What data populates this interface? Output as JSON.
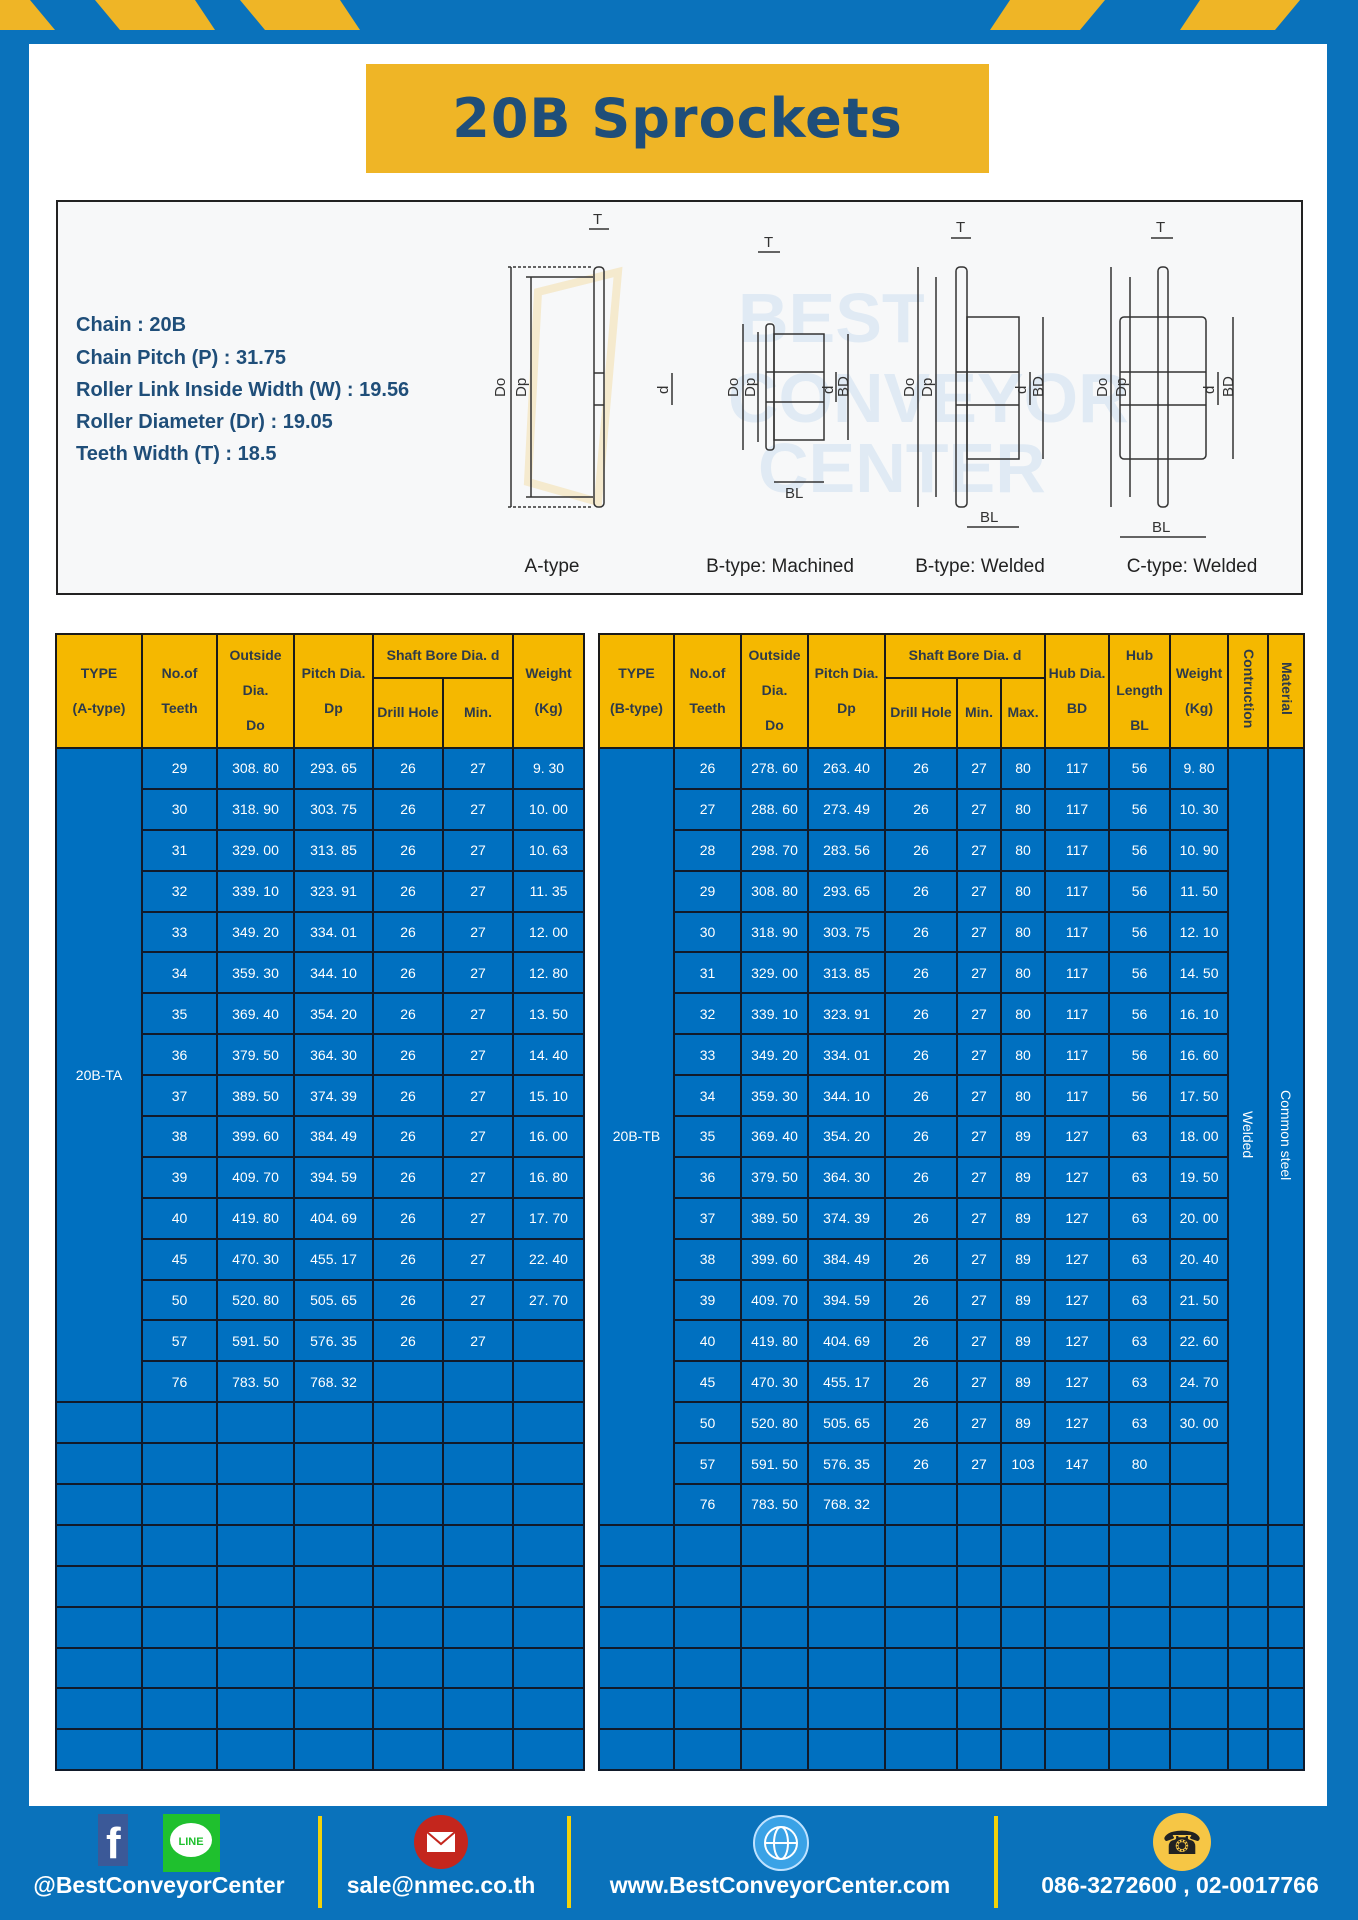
{
  "title": "20B Sprockets",
  "specs": [
    "Chain  : 20B",
    "Chain Pitch (P)  :  31.75",
    "Roller Link Inside Width (W)  :  19.56",
    "Roller Diameter (Dr)  : 19.05",
    "Teeth Width (T)  :  18.5"
  ],
  "diagram": {
    "captions": [
      "A-type",
      "B-type: Machined",
      "B-type: Welded",
      "C-type: Welded"
    ],
    "labels": {
      "t": "T",
      "do": "Do",
      "dp": "Dp",
      "d": "d",
      "bd": "BD",
      "bl": "BL"
    },
    "watermark": "BEST CONVEYOR CENTER"
  },
  "table_a": {
    "headers": {
      "type": [
        "TYPE",
        "(A-type)"
      ],
      "teeth": [
        "No.of",
        "Teeth"
      ],
      "od": [
        "Outside",
        "Dia.",
        "Do"
      ],
      "pd": [
        "Pitch Dia.",
        "Dp"
      ],
      "bore": "Shaft Bore Dia. d",
      "drill": "Drill Hole",
      "min": "Min.",
      "weight": [
        "Weight",
        "(Kg)"
      ]
    },
    "type_label": "20B-TA",
    "rows": [
      [
        "29",
        "308. 80",
        "293. 65",
        "26",
        "27",
        "9. 30"
      ],
      [
        "30",
        "318. 90",
        "303. 75",
        "26",
        "27",
        "10. 00"
      ],
      [
        "31",
        "329. 00",
        "313. 85",
        "26",
        "27",
        "10. 63"
      ],
      [
        "32",
        "339. 10",
        "323. 91",
        "26",
        "27",
        "11. 35"
      ],
      [
        "33",
        "349. 20",
        "334. 01",
        "26",
        "27",
        "12. 00"
      ],
      [
        "34",
        "359. 30",
        "344. 10",
        "26",
        "27",
        "12. 80"
      ],
      [
        "35",
        "369. 40",
        "354. 20",
        "26",
        "27",
        "13. 50"
      ],
      [
        "36",
        "379. 50",
        "364. 30",
        "26",
        "27",
        "14. 40"
      ],
      [
        "37",
        "389. 50",
        "374. 39",
        "26",
        "27",
        "15. 10"
      ],
      [
        "38",
        "399. 60",
        "384. 49",
        "26",
        "27",
        "16. 00"
      ],
      [
        "39",
        "409. 70",
        "394. 59",
        "26",
        "27",
        "16. 80"
      ],
      [
        "40",
        "419. 80",
        "404. 69",
        "26",
        "27",
        "17. 70"
      ],
      [
        "45",
        "470. 30",
        "455. 17",
        "26",
        "27",
        "22. 40"
      ],
      [
        "50",
        "520. 80",
        "505. 65",
        "26",
        "27",
        "27. 70"
      ],
      [
        "57",
        "591. 50",
        "576. 35",
        "26",
        "27",
        ""
      ],
      [
        "76",
        "783. 50",
        "768. 32",
        "",
        "",
        ""
      ]
    ]
  },
  "table_b": {
    "headers": {
      "type": [
        "TYPE",
        "(B-type)"
      ],
      "teeth": [
        "No.of",
        "Teeth"
      ],
      "od": [
        "Outside",
        "Dia.",
        "Do"
      ],
      "pd": [
        "Pitch Dia.",
        "Dp"
      ],
      "bore": "Shaft Bore Dia. d",
      "drill": "Drill Hole",
      "min": "Min.",
      "max": "Max.",
      "hub_dia": [
        "Hub Dia.",
        "BD"
      ],
      "hub_len": [
        "Hub",
        "Length",
        "BL"
      ],
      "weight": [
        "Weight",
        "(Kg)"
      ],
      "construction": "Contruction",
      "material": "Material"
    },
    "type_label": "20B-TB",
    "construction": "Welded",
    "material": "Common  steel",
    "rows": [
      [
        "26",
        "278. 60",
        "263. 40",
        "26",
        "27",
        "80",
        "117",
        "56",
        "9. 80"
      ],
      [
        "27",
        "288. 60",
        "273. 49",
        "26",
        "27",
        "80",
        "117",
        "56",
        "10. 30"
      ],
      [
        "28",
        "298. 70",
        "283. 56",
        "26",
        "27",
        "80",
        "117",
        "56",
        "10. 90"
      ],
      [
        "29",
        "308. 80",
        "293. 65",
        "26",
        "27",
        "80",
        "117",
        "56",
        "11. 50"
      ],
      [
        "30",
        "318. 90",
        "303. 75",
        "26",
        "27",
        "80",
        "117",
        "56",
        "12. 10"
      ],
      [
        "31",
        "329. 00",
        "313. 85",
        "26",
        "27",
        "80",
        "117",
        "56",
        "14. 50"
      ],
      [
        "32",
        "339. 10",
        "323. 91",
        "26",
        "27",
        "80",
        "117",
        "56",
        "16. 10"
      ],
      [
        "33",
        "349. 20",
        "334. 01",
        "26",
        "27",
        "80",
        "117",
        "56",
        "16. 60"
      ],
      [
        "34",
        "359. 30",
        "344. 10",
        "26",
        "27",
        "80",
        "117",
        "56",
        "17. 50"
      ],
      [
        "35",
        "369. 40",
        "354. 20",
        "26",
        "27",
        "89",
        "127",
        "63",
        "18. 00"
      ],
      [
        "36",
        "379. 50",
        "364. 30",
        "26",
        "27",
        "89",
        "127",
        "63",
        "19. 50"
      ],
      [
        "37",
        "389. 50",
        "374. 39",
        "26",
        "27",
        "89",
        "127",
        "63",
        "20. 00"
      ],
      [
        "38",
        "399. 60",
        "384. 49",
        "26",
        "27",
        "89",
        "127",
        "63",
        "20. 40"
      ],
      [
        "39",
        "409. 70",
        "394. 59",
        "26",
        "27",
        "89",
        "127",
        "63",
        "21. 50"
      ],
      [
        "40",
        "419. 80",
        "404. 69",
        "26",
        "27",
        "89",
        "127",
        "63",
        "22. 60"
      ],
      [
        "45",
        "470. 30",
        "455. 17",
        "26",
        "27",
        "89",
        "127",
        "63",
        "24. 70"
      ],
      [
        "50",
        "520. 80",
        "505. 65",
        "26",
        "27",
        "89",
        "127",
        "63",
        "30. 00"
      ],
      [
        "57",
        "591. 50",
        "576. 35",
        "26",
        "27",
        "103",
        "147",
        "80",
        ""
      ],
      [
        "76",
        "783. 50",
        "768. 32",
        "",
        "",
        "",
        "",
        "",
        ""
      ]
    ]
  },
  "footer": {
    "social": "@BestConveyorCenter",
    "email": "sale@nmec.co.th",
    "website": "www.BestConveyorCenter.com",
    "phone": "086-3272600 , 02-0017766",
    "line_logo": "LINE",
    "icons": [
      "facebook-icon",
      "line-icon",
      "email-icon",
      "globe-icon",
      "phone-icon"
    ]
  },
  "colors": {
    "brand_blue": "#0a72bb",
    "table_blue": "#0070c0",
    "yellow": "#f5b800",
    "title_text": "#1f4e79"
  }
}
